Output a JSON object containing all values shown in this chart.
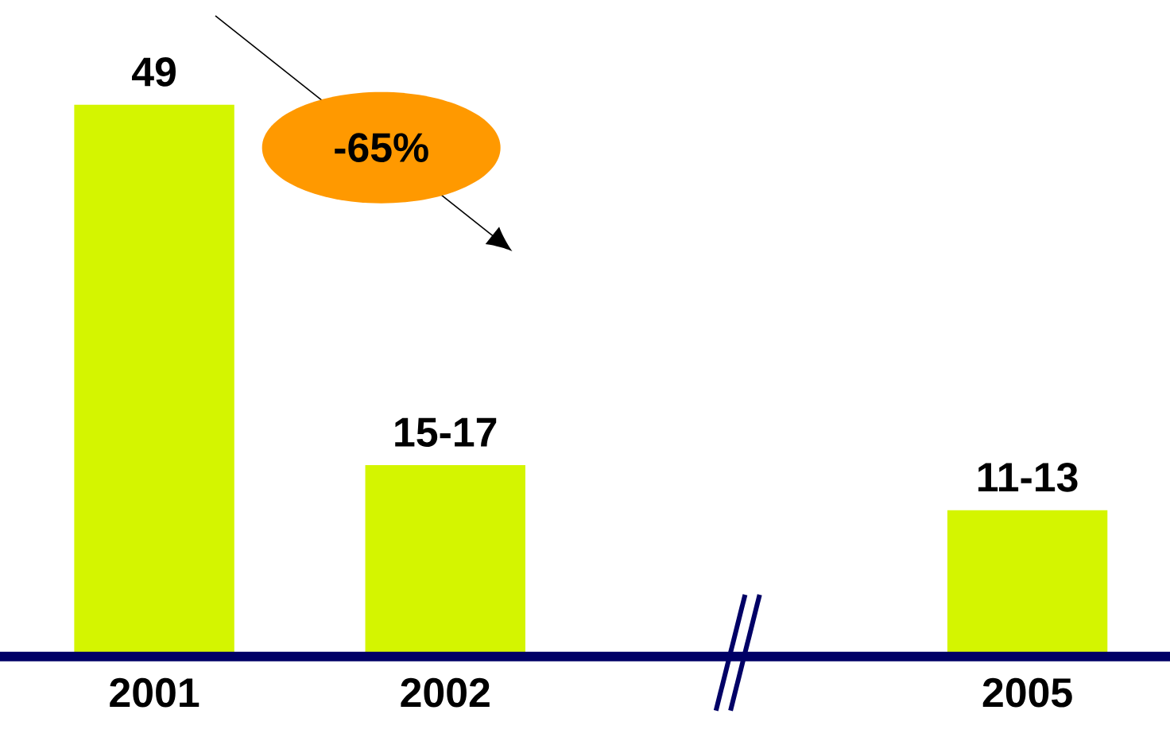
{
  "chart_data": {
    "type": "bar",
    "categories": [
      "2001",
      "2002",
      null,
      "2005"
    ],
    "values": [
      49,
      17,
      null,
      13
    ],
    "value_labels": [
      "49",
      "15-17",
      null,
      "11-13"
    ],
    "color": "#d4f500",
    "annotations": [
      "-65%"
    ]
  }
}
